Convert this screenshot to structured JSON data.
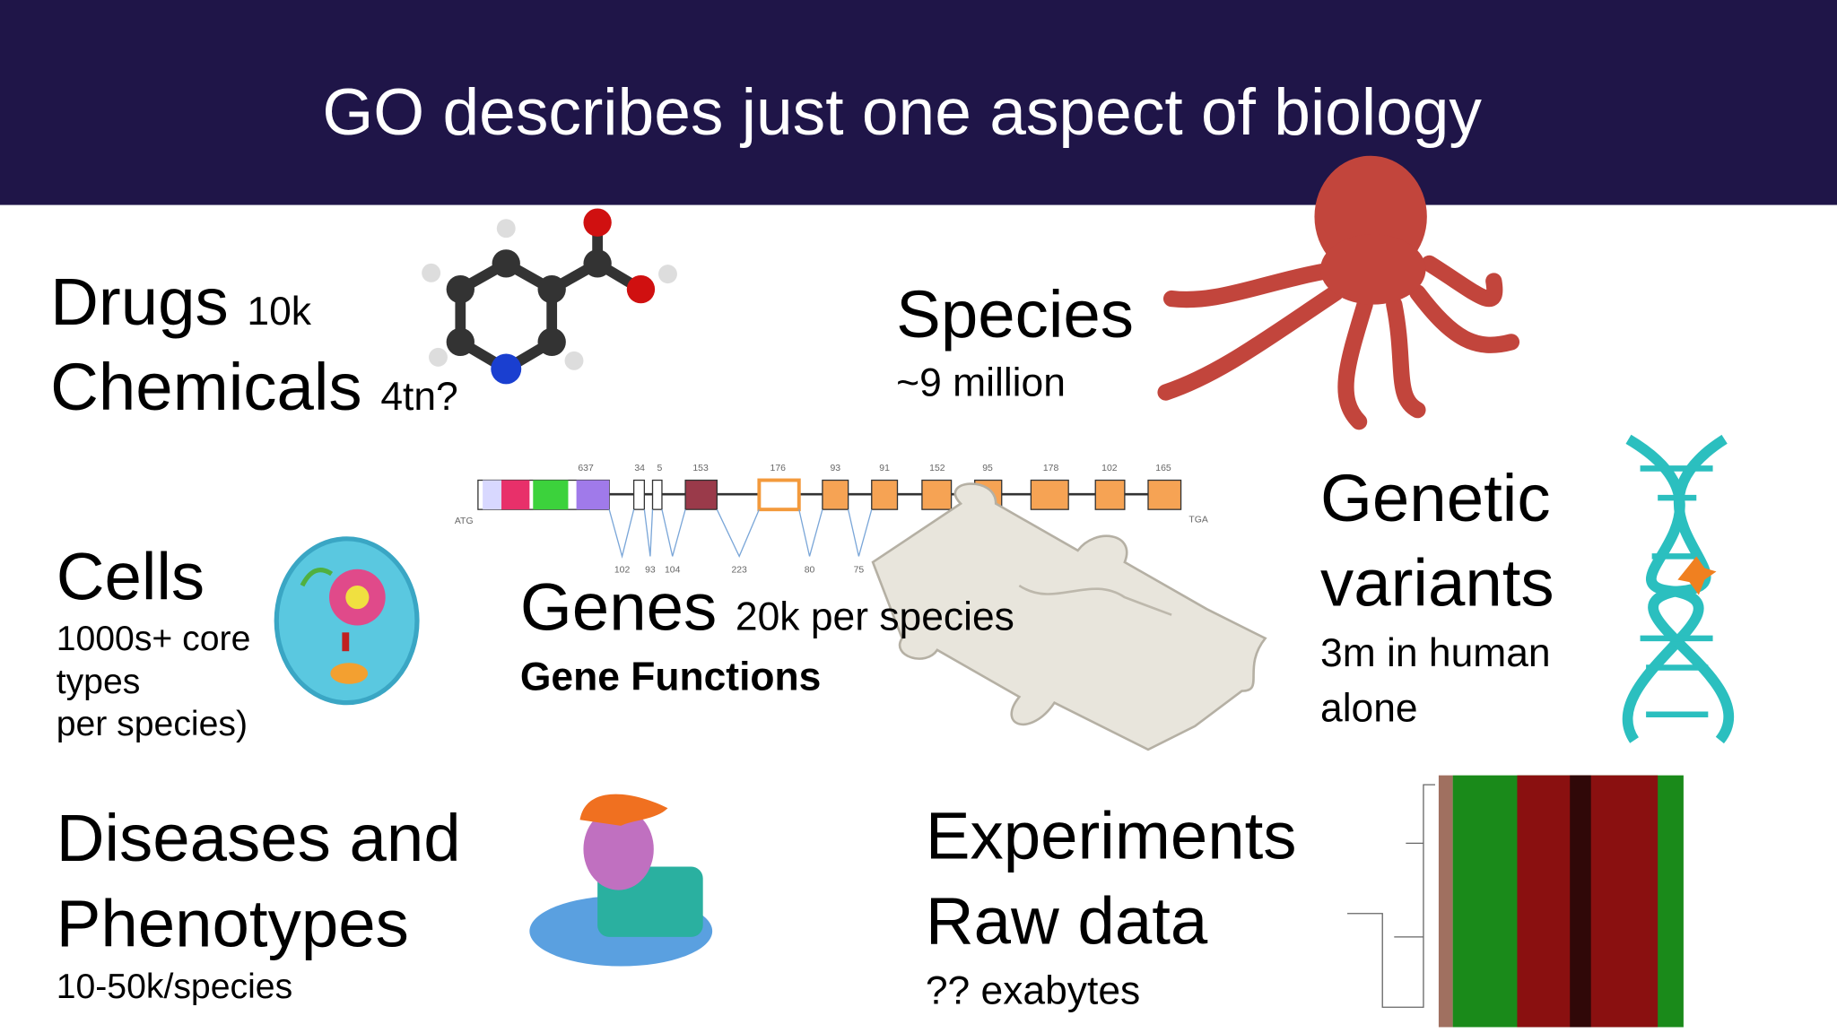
{
  "header": {
    "title": "GO describes just one aspect of biology"
  },
  "drugs": {
    "label": "Drugs",
    "count": "10k"
  },
  "chemicals": {
    "label": "Chemicals",
    "count": "4tn?"
  },
  "species": {
    "label": "Species",
    "count": "~9 million"
  },
  "cells": {
    "label": "Cells",
    "lines": [
      "1000s+ core",
      "types",
      "per species)"
    ]
  },
  "genes": {
    "label": "Genes",
    "count": "20k per species",
    "subtitle": "Gene Functions"
  },
  "gene_diagram": {
    "start": "ATG",
    "end": "TGA",
    "top_labels": [
      "637",
      "34",
      "5",
      "153",
      "176",
      "93",
      "91",
      "152",
      "95",
      "178",
      "102",
      "165"
    ],
    "bottom_labels": [
      "102",
      "93",
      "104",
      "223",
      "80",
      "75"
    ]
  },
  "variants": {
    "lines": [
      "Genetic",
      "variants"
    ],
    "count_lines": [
      "3m in human",
      "alone"
    ]
  },
  "diseases": {
    "lines": [
      "Diseases and",
      "Phenotypes"
    ],
    "count": "10-50k/species"
  },
  "experiments": {
    "lines": [
      "Experiments",
      "Raw data"
    ],
    "count": "?? exabytes"
  }
}
